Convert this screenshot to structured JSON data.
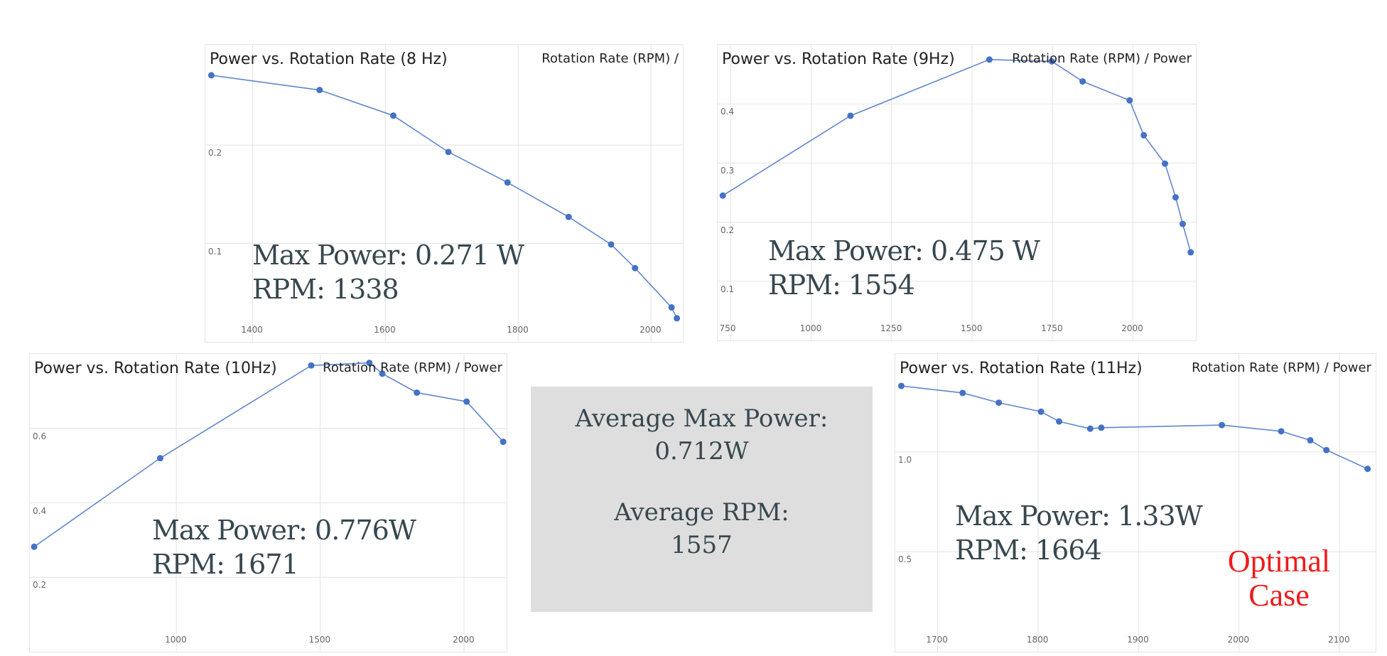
{
  "chart_data": [
    {
      "type": "line",
      "title": "Power vs. Rotation Rate (8 Hz)",
      "legend": "Rotation Rate (RPM) /",
      "legend_position": "top-right",
      "grid": true,
      "color": "#4472c4",
      "xlim": [
        1329,
        2048
      ],
      "ylim": [
        0.0,
        0.302
      ],
      "xticks": [
        1400,
        1600,
        1800,
        2000
      ],
      "yticks": [
        0.1,
        0.2
      ],
      "x": [
        1338,
        1501,
        1612,
        1695,
        1784,
        1876,
        1940,
        1976,
        2031,
        2039
      ],
      "y": [
        0.271,
        0.256,
        0.23,
        0.193,
        0.162,
        0.127,
        0.099,
        0.075,
        0.035,
        0.024
      ],
      "annotation": [
        "Max Power: 0.271 W",
        "RPM: 1338"
      ]
    },
    {
      "type": "line",
      "title": "Power vs. Rotation Rate (9Hz)",
      "legend": "Rotation Rate (RPM) / Power",
      "legend_position": "top-right",
      "grid": true,
      "color": "#4472c4",
      "xlim": [
        709,
        2196
      ],
      "ylim": [
        0.0,
        0.5
      ],
      "xticks": [
        750,
        1000,
        1250,
        1500,
        1750,
        2000
      ],
      "yticks": [
        0.1,
        0.2,
        0.3,
        0.4
      ],
      "x": [
        725,
        1122,
        1554,
        1748,
        1844,
        1990,
        2034,
        2100,
        2133,
        2155,
        2180
      ],
      "y": [
        0.245,
        0.38,
        0.475,
        0.472,
        0.438,
        0.406,
        0.347,
        0.299,
        0.242,
        0.197,
        0.149
      ],
      "annotation": [
        "Max Power: 0.475 W",
        "RPM: 1554"
      ]
    },
    {
      "type": "line",
      "title": "Power vs. Rotation Rate (10Hz)",
      "legend": "Rotation Rate (RPM) / Power",
      "legend_position": "top-right",
      "grid": true,
      "color": "#4472c4",
      "xlim": [
        491,
        2148
      ],
      "ylim": [
        0.0,
        0.8
      ],
      "xticks": [
        1000,
        1500,
        2000
      ],
      "yticks": [
        0.2,
        0.4,
        0.6
      ],
      "x": [
        506,
        944,
        1469,
        1671,
        1716,
        1836,
        2009,
        2136
      ],
      "y": [
        0.282,
        0.52,
        0.769,
        0.776,
        0.747,
        0.696,
        0.672,
        0.564
      ],
      "annotation": [
        "Max Power: 0.776W",
        "RPM: 1671"
      ]
    },
    {
      "type": "line",
      "title": "Power vs. Rotation Rate (11Hz)",
      "legend": "Rotation Rate (RPM) / Power",
      "legend_position": "top-right",
      "grid": true,
      "color": "#4472c4",
      "xlim": [
        1658,
        2136
      ],
      "ylim": [
        0.0,
        1.49
      ],
      "xticks": [
        1700,
        1800,
        1900,
        2000,
        2100
      ],
      "yticks": [
        0.5,
        1.0
      ],
      "x": [
        1664,
        1725,
        1761,
        1803,
        1821,
        1852,
        1863,
        1983,
        2042,
        2071,
        2087,
        2128
      ],
      "y": [
        1.33,
        1.295,
        1.246,
        1.201,
        1.152,
        1.116,
        1.121,
        1.134,
        1.103,
        1.058,
        1.009,
        0.915
      ],
      "annotation": [
        "Max Power: 1.33W",
        "RPM: 1664"
      ],
      "callout": [
        "Optimal",
        "Case"
      ]
    }
  ],
  "summary": {
    "avg_power_label": "Average Max Power:",
    "avg_power_value": "0.712W",
    "avg_rpm_label": "Average RPM:",
    "avg_rpm_value": "1557"
  }
}
